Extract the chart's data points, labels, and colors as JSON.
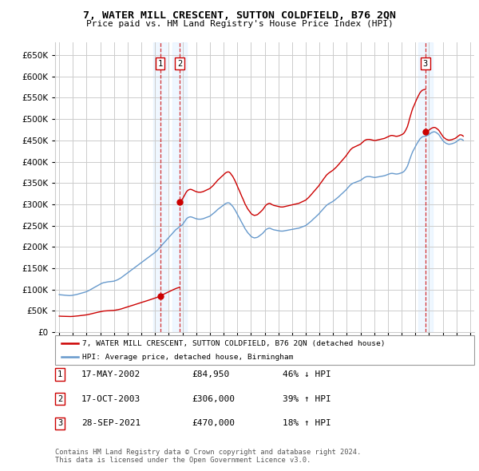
{
  "title": "7, WATER MILL CRESCENT, SUTTON COLDFIELD, B76 2QN",
  "subtitle": "Price paid vs. HM Land Registry's House Price Index (HPI)",
  "legend_label_red": "7, WATER MILL CRESCENT, SUTTON COLDFIELD, B76 2QN (detached house)",
  "legend_label_blue": "HPI: Average price, detached house, Birmingham",
  "footer_line1": "Contains HM Land Registry data © Crown copyright and database right 2024.",
  "footer_line2": "This data is licensed under the Open Government Licence v3.0.",
  "transactions": [
    {
      "num": 1,
      "date": "17-MAY-2002",
      "price": 84950,
      "pct": "46%",
      "dir": "↓",
      "year": 2002.38
    },
    {
      "num": 2,
      "date": "17-OCT-2003",
      "price": 306000,
      "pct": "39%",
      "dir": "↑",
      "year": 2003.79
    },
    {
      "num": 3,
      "date": "28-SEP-2021",
      "price": 470000,
      "pct": "18%",
      "dir": "↑",
      "year": 2021.74
    }
  ],
  "hpi_data": [
    [
      1995.0,
      88000
    ],
    [
      1995.08,
      87500
    ],
    [
      1995.17,
      87200
    ],
    [
      1995.25,
      87000
    ],
    [
      1995.33,
      86800
    ],
    [
      1995.42,
      86500
    ],
    [
      1995.5,
      86200
    ],
    [
      1995.58,
      86000
    ],
    [
      1995.67,
      85800
    ],
    [
      1995.75,
      85600
    ],
    [
      1995.83,
      85800
    ],
    [
      1995.92,
      86000
    ],
    [
      1996.0,
      86500
    ],
    [
      1996.08,
      87000
    ],
    [
      1996.17,
      87500
    ],
    [
      1996.25,
      88000
    ],
    [
      1996.33,
      88800
    ],
    [
      1996.42,
      89500
    ],
    [
      1996.5,
      90200
    ],
    [
      1996.58,
      91000
    ],
    [
      1996.67,
      91800
    ],
    [
      1996.75,
      92500
    ],
    [
      1996.83,
      93200
    ],
    [
      1996.92,
      94000
    ],
    [
      1997.0,
      95000
    ],
    [
      1997.08,
      96200
    ],
    [
      1997.17,
      97500
    ],
    [
      1997.25,
      99000
    ],
    [
      1997.33,
      100500
    ],
    [
      1997.42,
      102000
    ],
    [
      1997.5,
      103500
    ],
    [
      1997.58,
      105000
    ],
    [
      1997.67,
      106500
    ],
    [
      1997.75,
      108000
    ],
    [
      1997.83,
      109500
    ],
    [
      1997.92,
      111000
    ],
    [
      1998.0,
      112500
    ],
    [
      1998.08,
      114000
    ],
    [
      1998.17,
      115000
    ],
    [
      1998.25,
      116000
    ],
    [
      1998.33,
      116500
    ],
    [
      1998.42,
      117000
    ],
    [
      1998.5,
      117500
    ],
    [
      1998.58,
      118000
    ],
    [
      1998.67,
      118200
    ],
    [
      1998.75,
      118500
    ],
    [
      1998.83,
      118800
    ],
    [
      1998.92,
      119000
    ],
    [
      1999.0,
      119500
    ],
    [
      1999.08,
      120500
    ],
    [
      1999.17,
      121500
    ],
    [
      1999.25,
      122500
    ],
    [
      1999.33,
      124000
    ],
    [
      1999.42,
      125500
    ],
    [
      1999.5,
      127000
    ],
    [
      1999.58,
      129000
    ],
    [
      1999.67,
      131000
    ],
    [
      1999.75,
      133000
    ],
    [
      1999.83,
      135000
    ],
    [
      1999.92,
      137000
    ],
    [
      2000.0,
      139000
    ],
    [
      2000.08,
      141000
    ],
    [
      2000.17,
      143000
    ],
    [
      2000.25,
      145000
    ],
    [
      2000.33,
      147000
    ],
    [
      2000.42,
      149000
    ],
    [
      2000.5,
      151000
    ],
    [
      2000.58,
      153000
    ],
    [
      2000.67,
      155000
    ],
    [
      2000.75,
      157000
    ],
    [
      2000.83,
      159000
    ],
    [
      2000.92,
      161000
    ],
    [
      2001.0,
      163000
    ],
    [
      2001.08,
      165000
    ],
    [
      2001.17,
      167000
    ],
    [
      2001.25,
      169000
    ],
    [
      2001.33,
      171000
    ],
    [
      2001.42,
      173000
    ],
    [
      2001.5,
      175000
    ],
    [
      2001.58,
      177000
    ],
    [
      2001.67,
      179000
    ],
    [
      2001.75,
      181000
    ],
    [
      2001.83,
      183000
    ],
    [
      2001.92,
      185000
    ],
    [
      2002.0,
      187000
    ],
    [
      2002.08,
      189500
    ],
    [
      2002.17,
      192000
    ],
    [
      2002.25,
      195000
    ],
    [
      2002.33,
      198000
    ],
    [
      2002.42,
      201000
    ],
    [
      2002.5,
      204000
    ],
    [
      2002.58,
      207000
    ],
    [
      2002.67,
      210000
    ],
    [
      2002.75,
      213000
    ],
    [
      2002.83,
      216000
    ],
    [
      2002.92,
      219000
    ],
    [
      2003.0,
      222000
    ],
    [
      2003.08,
      225000
    ],
    [
      2003.17,
      228000
    ],
    [
      2003.25,
      231000
    ],
    [
      2003.33,
      234000
    ],
    [
      2003.42,
      237000
    ],
    [
      2003.5,
      240000
    ],
    [
      2003.58,
      242000
    ],
    [
      2003.67,
      244000
    ],
    [
      2003.75,
      246000
    ],
    [
      2003.83,
      248000
    ],
    [
      2003.92,
      250000
    ],
    [
      2004.0,
      252000
    ],
    [
      2004.08,
      256000
    ],
    [
      2004.17,
      260000
    ],
    [
      2004.25,
      264000
    ],
    [
      2004.33,
      267000
    ],
    [
      2004.42,
      269000
    ],
    [
      2004.5,
      270000
    ],
    [
      2004.58,
      270500
    ],
    [
      2004.67,
      270000
    ],
    [
      2004.75,
      269000
    ],
    [
      2004.83,
      268000
    ],
    [
      2004.92,
      267000
    ],
    [
      2005.0,
      266000
    ],
    [
      2005.08,
      265500
    ],
    [
      2005.17,
      265000
    ],
    [
      2005.25,
      265000
    ],
    [
      2005.33,
      265000
    ],
    [
      2005.42,
      265500
    ],
    [
      2005.5,
      266000
    ],
    [
      2005.58,
      267000
    ],
    [
      2005.67,
      268000
    ],
    [
      2005.75,
      269000
    ],
    [
      2005.83,
      270000
    ],
    [
      2005.92,
      271000
    ],
    [
      2006.0,
      272000
    ],
    [
      2006.08,
      274000
    ],
    [
      2006.17,
      276000
    ],
    [
      2006.25,
      278000
    ],
    [
      2006.33,
      280500
    ],
    [
      2006.42,
      283000
    ],
    [
      2006.5,
      285500
    ],
    [
      2006.58,
      288000
    ],
    [
      2006.67,
      290000
    ],
    [
      2006.75,
      292000
    ],
    [
      2006.83,
      294000
    ],
    [
      2006.92,
      296000
    ],
    [
      2007.0,
      298000
    ],
    [
      2007.08,
      300000
    ],
    [
      2007.17,
      302000
    ],
    [
      2007.25,
      303000
    ],
    [
      2007.33,
      303500
    ],
    [
      2007.42,
      303000
    ],
    [
      2007.5,
      301000
    ],
    [
      2007.58,
      298000
    ],
    [
      2007.67,
      295000
    ],
    [
      2007.75,
      291000
    ],
    [
      2007.83,
      287000
    ],
    [
      2007.92,
      282000
    ],
    [
      2008.0,
      277000
    ],
    [
      2008.08,
      272000
    ],
    [
      2008.17,
      267000
    ],
    [
      2008.25,
      262000
    ],
    [
      2008.33,
      257000
    ],
    [
      2008.42,
      252000
    ],
    [
      2008.5,
      247000
    ],
    [
      2008.58,
      242000
    ],
    [
      2008.67,
      238000
    ],
    [
      2008.75,
      234000
    ],
    [
      2008.83,
      231000
    ],
    [
      2008.92,
      228000
    ],
    [
      2009.0,
      225000
    ],
    [
      2009.08,
      223000
    ],
    [
      2009.17,
      222000
    ],
    [
      2009.25,
      221000
    ],
    [
      2009.33,
      221500
    ],
    [
      2009.42,
      222000
    ],
    [
      2009.5,
      223000
    ],
    [
      2009.58,
      225000
    ],
    [
      2009.67,
      227000
    ],
    [
      2009.75,
      229000
    ],
    [
      2009.83,
      231000
    ],
    [
      2009.92,
      234000
    ],
    [
      2010.0,
      237000
    ],
    [
      2010.08,
      240000
    ],
    [
      2010.17,
      242000
    ],
    [
      2010.25,
      243000
    ],
    [
      2010.33,
      244000
    ],
    [
      2010.42,
      243500
    ],
    [
      2010.5,
      242000
    ],
    [
      2010.58,
      241000
    ],
    [
      2010.67,
      240000
    ],
    [
      2010.75,
      239500
    ],
    [
      2010.83,
      239000
    ],
    [
      2010.92,
      238500
    ],
    [
      2011.0,
      238000
    ],
    [
      2011.08,
      237500
    ],
    [
      2011.17,
      237000
    ],
    [
      2011.25,
      237000
    ],
    [
      2011.33,
      237000
    ],
    [
      2011.42,
      237500
    ],
    [
      2011.5,
      238000
    ],
    [
      2011.58,
      238500
    ],
    [
      2011.67,
      239000
    ],
    [
      2011.75,
      239500
    ],
    [
      2011.83,
      240000
    ],
    [
      2011.92,
      240500
    ],
    [
      2012.0,
      241000
    ],
    [
      2012.08,
      241500
    ],
    [
      2012.17,
      242000
    ],
    [
      2012.25,
      242500
    ],
    [
      2012.33,
      243000
    ],
    [
      2012.42,
      243500
    ],
    [
      2012.5,
      244000
    ],
    [
      2012.58,
      245000
    ],
    [
      2012.67,
      246000
    ],
    [
      2012.75,
      247000
    ],
    [
      2012.83,
      248000
    ],
    [
      2012.92,
      249000
    ],
    [
      2013.0,
      250000
    ],
    [
      2013.08,
      252000
    ],
    [
      2013.17,
      254000
    ],
    [
      2013.25,
      256000
    ],
    [
      2013.33,
      258500
    ],
    [
      2013.42,
      261000
    ],
    [
      2013.5,
      263500
    ],
    [
      2013.58,
      266000
    ],
    [
      2013.67,
      268500
    ],
    [
      2013.75,
      271000
    ],
    [
      2013.83,
      273500
    ],
    [
      2013.92,
      276000
    ],
    [
      2014.0,
      279000
    ],
    [
      2014.08,
      282000
    ],
    [
      2014.17,
      285000
    ],
    [
      2014.25,
      288000
    ],
    [
      2014.33,
      291000
    ],
    [
      2014.42,
      294000
    ],
    [
      2014.5,
      297000
    ],
    [
      2014.58,
      299000
    ],
    [
      2014.67,
      301000
    ],
    [
      2014.75,
      302500
    ],
    [
      2014.83,
      304000
    ],
    [
      2014.92,
      305500
    ],
    [
      2015.0,
      307000
    ],
    [
      2015.08,
      309000
    ],
    [
      2015.17,
      311000
    ],
    [
      2015.25,
      313000
    ],
    [
      2015.33,
      315500
    ],
    [
      2015.42,
      318000
    ],
    [
      2015.5,
      320500
    ],
    [
      2015.58,
      323000
    ],
    [
      2015.67,
      325500
    ],
    [
      2015.75,
      328000
    ],
    [
      2015.83,
      330500
    ],
    [
      2015.92,
      333000
    ],
    [
      2016.0,
      336000
    ],
    [
      2016.08,
      339000
    ],
    [
      2016.17,
      342000
    ],
    [
      2016.25,
      345000
    ],
    [
      2016.33,
      347000
    ],
    [
      2016.42,
      349000
    ],
    [
      2016.5,
      350000
    ],
    [
      2016.58,
      351000
    ],
    [
      2016.67,
      352000
    ],
    [
      2016.75,
      353000
    ],
    [
      2016.83,
      354000
    ],
    [
      2016.92,
      355000
    ],
    [
      2017.0,
      356000
    ],
    [
      2017.08,
      358000
    ],
    [
      2017.17,
      360000
    ],
    [
      2017.25,
      362000
    ],
    [
      2017.33,
      363500
    ],
    [
      2017.42,
      364500
    ],
    [
      2017.5,
      365000
    ],
    [
      2017.58,
      365000
    ],
    [
      2017.67,
      365000
    ],
    [
      2017.75,
      364500
    ],
    [
      2017.83,
      364000
    ],
    [
      2017.92,
      363500
    ],
    [
      2018.0,
      363000
    ],
    [
      2018.08,
      363000
    ],
    [
      2018.17,
      363500
    ],
    [
      2018.25,
      364000
    ],
    [
      2018.33,
      364500
    ],
    [
      2018.42,
      365000
    ],
    [
      2018.5,
      365500
    ],
    [
      2018.58,
      366000
    ],
    [
      2018.67,
      366500
    ],
    [
      2018.75,
      367000
    ],
    [
      2018.83,
      368000
    ],
    [
      2018.92,
      369000
    ],
    [
      2019.0,
      370000
    ],
    [
      2019.08,
      371000
    ],
    [
      2019.17,
      372000
    ],
    [
      2019.25,
      372500
    ],
    [
      2019.33,
      372500
    ],
    [
      2019.42,
      372000
    ],
    [
      2019.5,
      371500
    ],
    [
      2019.58,
      371000
    ],
    [
      2019.67,
      371000
    ],
    [
      2019.75,
      371500
    ],
    [
      2019.83,
      372000
    ],
    [
      2019.92,
      373000
    ],
    [
      2020.0,
      374000
    ],
    [
      2020.08,
      375000
    ],
    [
      2020.17,
      377000
    ],
    [
      2020.25,
      380000
    ],
    [
      2020.33,
      384000
    ],
    [
      2020.42,
      389000
    ],
    [
      2020.5,
      396000
    ],
    [
      2020.58,
      404000
    ],
    [
      2020.67,
      412000
    ],
    [
      2020.75,
      419000
    ],
    [
      2020.83,
      425000
    ],
    [
      2020.92,
      430000
    ],
    [
      2021.0,
      435000
    ],
    [
      2021.08,
      440000
    ],
    [
      2021.17,
      445000
    ],
    [
      2021.25,
      449000
    ],
    [
      2021.33,
      453000
    ],
    [
      2021.42,
      456000
    ],
    [
      2021.5,
      458000
    ],
    [
      2021.58,
      459000
    ],
    [
      2021.67,
      459500
    ],
    [
      2021.75,
      460000
    ],
    [
      2021.83,
      461000
    ],
    [
      2021.92,
      462000
    ],
    [
      2022.0,
      464000
    ],
    [
      2022.08,
      466000
    ],
    [
      2022.17,
      468000
    ],
    [
      2022.25,
      469000
    ],
    [
      2022.33,
      470000
    ],
    [
      2022.42,
      470000
    ],
    [
      2022.5,
      469000
    ],
    [
      2022.58,
      467000
    ],
    [
      2022.67,
      465000
    ],
    [
      2022.75,
      462000
    ],
    [
      2022.83,
      458000
    ],
    [
      2022.92,
      454000
    ],
    [
      2023.0,
      450000
    ],
    [
      2023.08,
      447000
    ],
    [
      2023.17,
      445000
    ],
    [
      2023.25,
      443000
    ],
    [
      2023.33,
      442000
    ],
    [
      2023.42,
      441000
    ],
    [
      2023.5,
      441000
    ],
    [
      2023.58,
      441500
    ],
    [
      2023.67,
      442000
    ],
    [
      2023.75,
      443000
    ],
    [
      2023.83,
      444000
    ],
    [
      2023.92,
      445000
    ],
    [
      2024.0,
      447000
    ],
    [
      2024.08,
      449000
    ],
    [
      2024.17,
      451000
    ],
    [
      2024.25,
      453000
    ],
    [
      2024.33,
      453000
    ],
    [
      2024.42,
      452000
    ],
    [
      2024.5,
      450000
    ]
  ],
  "color_red": "#cc0000",
  "color_blue": "#6699cc",
  "color_grid": "#cccccc",
  "color_bg_shade": "#ddeeff",
  "ylim": [
    0,
    680000
  ],
  "xlim": [
    1994.7,
    2025.3
  ],
  "yticks": [
    0,
    50000,
    100000,
    150000,
    200000,
    250000,
    300000,
    350000,
    400000,
    450000,
    500000,
    550000,
    600000,
    650000
  ],
  "xticks": [
    1995,
    1996,
    1997,
    1998,
    1999,
    2000,
    2001,
    2002,
    2003,
    2004,
    2005,
    2006,
    2007,
    2008,
    2009,
    2010,
    2011,
    2012,
    2013,
    2014,
    2015,
    2016,
    2017,
    2018,
    2019,
    2020,
    2021,
    2022,
    2023,
    2024,
    2025
  ]
}
